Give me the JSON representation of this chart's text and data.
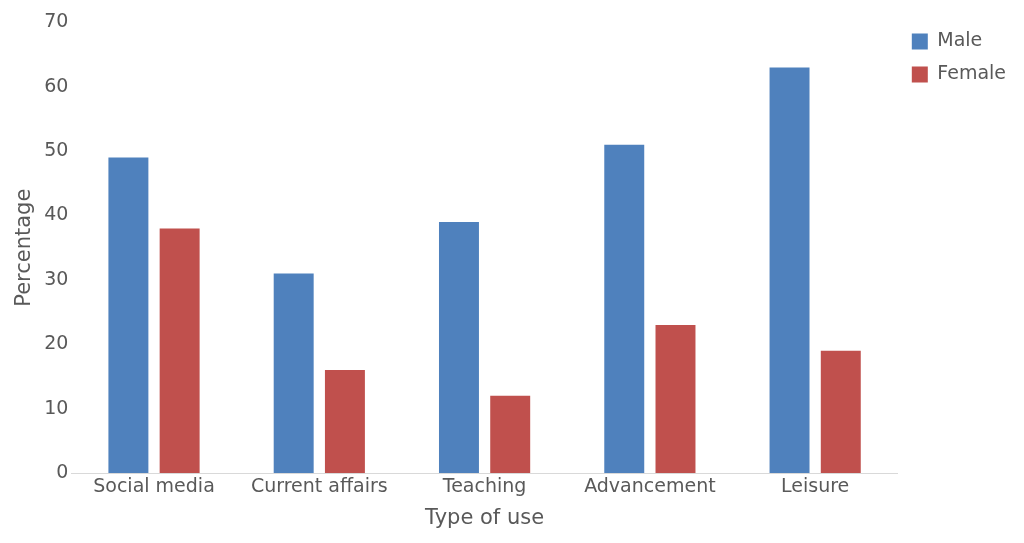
{
  "chart_data": {
    "type": "bar",
    "xlabel": "Type of use",
    "ylabel": "Percentage",
    "categories": [
      "Social media",
      "Current affairs",
      "Teaching",
      "Advancement",
      "Leisure"
    ],
    "series": [
      {
        "name": "Male",
        "color": "#4f81bd",
        "values": [
          49,
          31,
          39,
          51,
          63
        ]
      },
      {
        "name": "Female",
        "color": "#c0504d",
        "values": [
          38,
          16,
          12,
          23,
          19
        ]
      }
    ],
    "ylim": [
      0,
      70
    ],
    "yticks": [
      0,
      10,
      20,
      30,
      40,
      50,
      60,
      70
    ],
    "grid": false,
    "legend": "top right"
  }
}
